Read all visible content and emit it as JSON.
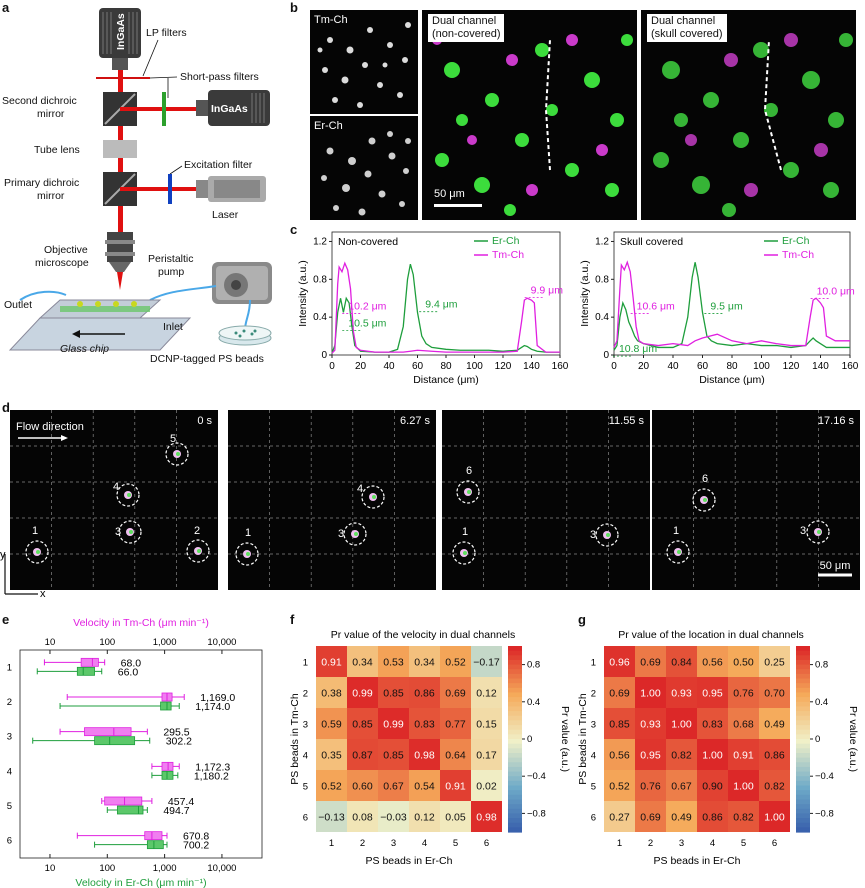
{
  "panel_letters": {
    "a": "a",
    "b": "b",
    "c": "c",
    "d": "d",
    "e": "e",
    "f": "f",
    "g": "g"
  },
  "panel_a": {
    "detector_top": "InGaAs",
    "detector_side": "InGaAs",
    "lp_filters": "LP filters",
    "short_pass_filters": "Short-pass filters",
    "second_dichroic_line1": "Second dichroic",
    "second_dichroic_line2": "mirror",
    "tube_lens": "Tube lens",
    "excitation_filter": "Excitation filter",
    "primary_dichroic_line1": "Primary dichroic",
    "primary_dichroic_line2": "mirror",
    "laser": "Laser",
    "objective_line1": "Objective",
    "objective_line2": "microscope",
    "peristaltic_line1": "Peristaltic",
    "peristaltic_line2": "pump",
    "outlet": "Outlet",
    "inlet": "Inlet",
    "glass_chip": "Glass chip",
    "beads": "DCNP-tagged PS beads"
  },
  "panel_b": {
    "tm_label": "Tm-Ch",
    "er_label": "Er-Ch",
    "dual_noncovered_line1": "Dual channel",
    "dual_noncovered_line2": "(non-covered)",
    "dual_covered_line1": "Dual channel",
    "dual_covered_line2": "(skull covered)",
    "scale": "50 μm"
  },
  "panel_d": {
    "flow_direction": "Flow direction",
    "times": [
      "0 s",
      "6.27 s",
      "11.55 s",
      "17.16 s"
    ],
    "scale": "50 μm",
    "axis_x": "x",
    "axis_y": "y",
    "frames": [
      [
        {
          "n": "5",
          "lx": -7,
          "ly": -12
        },
        {
          "n": "4",
          "lx": -15,
          "ly": -5
        },
        {
          "n": "3",
          "lx": -15,
          "ly": 3
        },
        {
          "n": "2",
          "lx": -4,
          "ly": -17
        },
        {
          "n": "1",
          "lx": -5,
          "ly": -18
        }
      ],
      [
        {
          "n": "4",
          "lx": -16,
          "ly": -5
        },
        {
          "n": "3",
          "lx": -17,
          "ly": 3
        },
        {
          "n": "1",
          "lx": -2,
          "ly": -18
        }
      ],
      [
        {
          "n": "6",
          "lx": -2,
          "ly": -18
        },
        {
          "n": "1",
          "lx": -2,
          "ly": -18
        },
        {
          "n": "3",
          "lx": -17,
          "ly": 3
        }
      ],
      [
        {
          "n": "6",
          "lx": -2,
          "ly": -18
        },
        {
          "n": "1",
          "lx": -5,
          "ly": -18
        },
        {
          "n": "3",
          "lx": -18,
          "ly": 2
        }
      ]
    ]
  },
  "colors": {
    "er": "#1e9e3c",
    "tm": "#e020e0",
    "er_fill": "#5cc86a",
    "tm_fill": "#f07ef0"
  },
  "chart_data": [
    {
      "panel": "c-left",
      "type": "line",
      "title": "Non-covered",
      "xlabel": "Distance (μm)",
      "ylabel": "Intensity (a.u.)",
      "xlim": [
        0,
        160
      ],
      "ylim": [
        0,
        1.3
      ],
      "xticks": [
        0,
        20,
        40,
        60,
        80,
        100,
        120,
        140,
        160
      ],
      "yticks": [
        0,
        0.4,
        0.8,
        1.2
      ],
      "series": [
        {
          "name": "Er-Ch",
          "color": "#1e9e3c",
          "x": [
            0,
            2,
            4,
            6,
            8,
            10,
            12,
            14,
            16,
            20,
            30,
            40,
            46,
            50,
            53,
            55,
            57,
            60,
            63,
            66,
            70,
            80,
            90,
            100,
            110,
            120,
            130,
            133,
            135,
            137,
            140,
            142,
            144,
            150,
            160
          ],
          "y": [
            0.02,
            0.1,
            0.45,
            0.6,
            0.45,
            0.6,
            0.55,
            0.3,
            0.1,
            0.04,
            0.03,
            0.03,
            0.06,
            0.3,
            0.8,
            0.96,
            0.85,
            0.45,
            0.2,
            0.12,
            0.08,
            0.06,
            0.05,
            0.05,
            0.05,
            0.04,
            0.05,
            0.08,
            0.1,
            0.09,
            0.06,
            0.05,
            0.04,
            0.03,
            0.03
          ]
        },
        {
          "name": "Tm-Ch",
          "color": "#e020e0",
          "x": [
            0,
            2,
            4,
            5,
            7,
            9,
            11,
            13,
            15,
            17,
            20,
            30,
            40,
            50,
            55,
            60,
            70,
            80,
            90,
            100,
            110,
            120,
            130,
            133,
            135,
            137,
            140,
            142,
            144,
            150,
            160
          ],
          "y": [
            0.02,
            0.05,
            0.75,
            0.93,
            0.88,
            0.97,
            0.9,
            0.7,
            0.25,
            0.08,
            0.05,
            0.03,
            0.03,
            0.03,
            0.04,
            0.05,
            0.04,
            0.03,
            0.03,
            0.03,
            0.03,
            0.03,
            0.04,
            0.35,
            0.58,
            0.6,
            0.58,
            0.55,
            0.1,
            0.03,
            0.03
          ]
        }
      ],
      "annotations": [
        {
          "text": "10.2 μm",
          "color": "#e020e0",
          "x": 10,
          "y": 0.48
        },
        {
          "text": "10.5 μm",
          "color": "#1e9e3c",
          "x": 10,
          "y": 0.3
        },
        {
          "text": "9.4 μm",
          "color": "#1e9e3c",
          "x": 64,
          "y": 0.5
        },
        {
          "text": "9.9 μm",
          "color": "#e020e0",
          "x": 138,
          "y": 0.65
        }
      ]
    },
    {
      "panel": "c-right",
      "type": "line",
      "title": "Skull covered",
      "xlabel": "Distance (μm)",
      "ylabel": "Intensity (a.u.)",
      "xlim": [
        0,
        160
      ],
      "ylim": [
        0,
        1.3
      ],
      "xticks": [
        0,
        20,
        40,
        60,
        80,
        100,
        120,
        140,
        160
      ],
      "yticks": [
        0,
        0.4,
        0.8,
        1.2
      ],
      "series": [
        {
          "name": "Er-Ch",
          "color": "#1e9e3c",
          "x": [
            0,
            2,
            4,
            6,
            8,
            10,
            12,
            14,
            16,
            20,
            30,
            40,
            46,
            50,
            53,
            55,
            57,
            60,
            63,
            66,
            70,
            80,
            90,
            100,
            110,
            120,
            130,
            133,
            135,
            137,
            140,
            142,
            144,
            150,
            160
          ],
          "y": [
            0.05,
            0.1,
            0.4,
            0.55,
            0.48,
            0.35,
            0.28,
            0.2,
            0.15,
            0.12,
            0.08,
            0.08,
            0.12,
            0.4,
            0.82,
            0.98,
            0.82,
            0.45,
            0.2,
            0.15,
            0.12,
            0.1,
            0.12,
            0.1,
            0.1,
            0.08,
            0.1,
            0.15,
            0.18,
            0.15,
            0.12,
            0.1,
            0.08,
            0.08,
            0.08
          ]
        },
        {
          "name": "Tm-Ch",
          "color": "#e020e0",
          "x": [
            0,
            2,
            4,
            5,
            7,
            9,
            11,
            13,
            15,
            17,
            20,
            30,
            40,
            50,
            55,
            60,
            70,
            80,
            90,
            100,
            110,
            120,
            130,
            133,
            135,
            137,
            140,
            142,
            144,
            150,
            160
          ],
          "y": [
            0.08,
            0.15,
            0.7,
            0.95,
            0.9,
            0.98,
            0.88,
            0.6,
            0.3,
            0.15,
            0.12,
            0.1,
            0.12,
            0.1,
            0.15,
            0.18,
            0.22,
            0.15,
            0.12,
            0.15,
            0.12,
            0.1,
            0.1,
            0.4,
            0.58,
            0.6,
            0.55,
            0.5,
            0.2,
            0.15,
            0.15
          ]
        }
      ],
      "annotations": [
        {
          "text": "10.6 μm",
          "color": "#e020e0",
          "x": 14,
          "y": 0.48
        },
        {
          "text": "10.8 μm",
          "color": "#1e9e3c",
          "x": 2,
          "y": 0.03
        },
        {
          "text": "9.5 μm",
          "color": "#1e9e3c",
          "x": 64,
          "y": 0.48
        },
        {
          "text": "10.0 μm",
          "color": "#e020e0",
          "x": 136,
          "y": 0.64
        }
      ]
    },
    {
      "panel": "e",
      "type": "box",
      "xlabel_top": "Velocity in Tm-Ch (μm min⁻¹)",
      "xlabel_bottom": "Velocity in Er-Ch (μm min⁻¹)",
      "xscale": "log",
      "xlim": [
        3,
        50000
      ],
      "xticks": [
        10,
        100,
        1000,
        10000
      ],
      "xticklabels": [
        "10",
        "100",
        "1,000",
        "10,000"
      ],
      "categories": [
        "1",
        "2",
        "3",
        "4",
        "5",
        "6"
      ],
      "series": [
        {
          "name": "Tm-Ch",
          "color": "#e020e0",
          "boxes": [
            {
              "wmin": 8,
              "q1": 35,
              "med": 55,
              "q3": 70,
              "wmax": 90,
              "label": "68.0"
            },
            {
              "wmin": 20,
              "q1": 900,
              "med": 1100,
              "q3": 1350,
              "wmax": 2200,
              "label": "1,169.0"
            },
            {
              "wmin": 15,
              "q1": 40,
              "med": 130,
              "q3": 260,
              "wmax": 500,
              "label": "295.5"
            },
            {
              "wmin": 600,
              "q1": 900,
              "med": 1150,
              "q3": 1400,
              "wmax": 1800,
              "label": "1,172.3"
            },
            {
              "wmin": 80,
              "q1": 90,
              "med": 200,
              "q3": 400,
              "wmax": 600,
              "label": "457.4"
            },
            {
              "wmin": 30,
              "q1": 450,
              "med": 600,
              "q3": 900,
              "wmax": 1100,
              "label": "670.8"
            }
          ]
        },
        {
          "name": "Er-Ch",
          "color": "#1e9e3c",
          "boxes": [
            {
              "wmin": 6,
              "q1": 30,
              "med": 38,
              "q3": 60,
              "wmax": 80,
              "label": "66.0"
            },
            {
              "wmin": 15,
              "q1": 850,
              "med": 1100,
              "q3": 1300,
              "wmax": 1800,
              "label": "1,174.0"
            },
            {
              "wmin": 5,
              "q1": 60,
              "med": 110,
              "q3": 300,
              "wmax": 550,
              "label": "302.2"
            },
            {
              "wmin": 600,
              "q1": 900,
              "med": 1100,
              "q3": 1400,
              "wmax": 1700,
              "label": "1,180.2"
            },
            {
              "wmin": 100,
              "q1": 150,
              "med": 350,
              "q3": 420,
              "wmax": 500,
              "label": "494.7"
            },
            {
              "wmin": 60,
              "q1": 500,
              "med": 650,
              "q3": 950,
              "wmax": 1100,
              "label": "700.2"
            }
          ]
        }
      ]
    },
    {
      "panel": "f",
      "type": "heatmap",
      "title": "Pr value of the velocity in dual channels",
      "xlabel": "PS beads in Er-Ch",
      "ylabel": "PS beads in Tm-Ch",
      "colorbar_label": "Pr value (a.u.)",
      "colorbar_ticks": [
        "0.8",
        "0.4",
        "0",
        "−0.4",
        "−0.8"
      ],
      "xcategories": [
        "1",
        "2",
        "3",
        "4",
        "5",
        "6"
      ],
      "ycategories": [
        "1",
        "2",
        "3",
        "4",
        "5",
        "6"
      ],
      "vmin": -1,
      "vmax": 1,
      "matrix": [
        [
          0.91,
          0.34,
          0.53,
          0.34,
          0.52,
          -0.17
        ],
        [
          0.38,
          0.99,
          0.85,
          0.86,
          0.69,
          0.12
        ],
        [
          0.59,
          0.85,
          0.99,
          0.83,
          0.77,
          0.15
        ],
        [
          0.35,
          0.87,
          0.85,
          0.98,
          0.64,
          0.17
        ],
        [
          0.52,
          0.6,
          0.67,
          0.54,
          0.91,
          0.02
        ],
        [
          -0.13,
          0.08,
          -0.03,
          0.12,
          0.05,
          0.98
        ]
      ],
      "labels": [
        [
          "0.91",
          "0.34",
          "0.53",
          "0.34",
          "0.52",
          "−0.17"
        ],
        [
          "0.38",
          "0.99",
          "0.85",
          "0.86",
          "0.69",
          "0.12"
        ],
        [
          "0.59",
          "0.85",
          "0.99",
          "0.83",
          "0.77",
          "0.15"
        ],
        [
          "0.35",
          "0.87",
          "0.85",
          "0.98",
          "0.64",
          "0.17"
        ],
        [
          "0.52",
          "0.60",
          "0.67",
          "0.54",
          "0.91",
          "0.02"
        ],
        [
          "−0.13",
          "0.08",
          "−0.03",
          "0.12",
          "0.05",
          "0.98"
        ]
      ]
    },
    {
      "panel": "g",
      "type": "heatmap",
      "title": "Pr value of the location in dual channels",
      "xlabel": "PS beads in Er-Ch",
      "ylabel": "PS beads in Tm-Ch",
      "colorbar_label": "Pr value (a.u.)",
      "colorbar_ticks": [
        "0.8",
        "0.4",
        "0",
        "−0.4",
        "−0.8"
      ],
      "xcategories": [
        "1",
        "2",
        "3",
        "4",
        "5",
        "6"
      ],
      "ycategories": [
        "1",
        "2",
        "3",
        "4",
        "5",
        "6"
      ],
      "vmin": -1,
      "vmax": 1,
      "matrix": [
        [
          0.96,
          0.69,
          0.84,
          0.56,
          0.5,
          0.25
        ],
        [
          0.69,
          1.0,
          0.93,
          0.95,
          0.76,
          0.7
        ],
        [
          0.85,
          0.93,
          1.0,
          0.83,
          0.68,
          0.49
        ],
        [
          0.56,
          0.95,
          0.82,
          1.0,
          0.91,
          0.86
        ],
        [
          0.52,
          0.76,
          0.67,
          0.9,
          1.0,
          0.82
        ],
        [
          0.27,
          0.69,
          0.49,
          0.86,
          0.82,
          1.0
        ]
      ],
      "labels": [
        [
          "0.96",
          "0.69",
          "0.84",
          "0.56",
          "0.50",
          "0.25"
        ],
        [
          "0.69",
          "1.00",
          "0.93",
          "0.95",
          "0.76",
          "0.70"
        ],
        [
          "0.85",
          "0.93",
          "1.00",
          "0.83",
          "0.68",
          "0.49"
        ],
        [
          "0.56",
          "0.95",
          "0.82",
          "1.00",
          "0.91",
          "0.86"
        ],
        [
          "0.52",
          "0.76",
          "0.67",
          "0.90",
          "1.00",
          "0.82"
        ],
        [
          "0.27",
          "0.69",
          "0.49",
          "0.86",
          "0.82",
          "1.00"
        ]
      ]
    }
  ]
}
